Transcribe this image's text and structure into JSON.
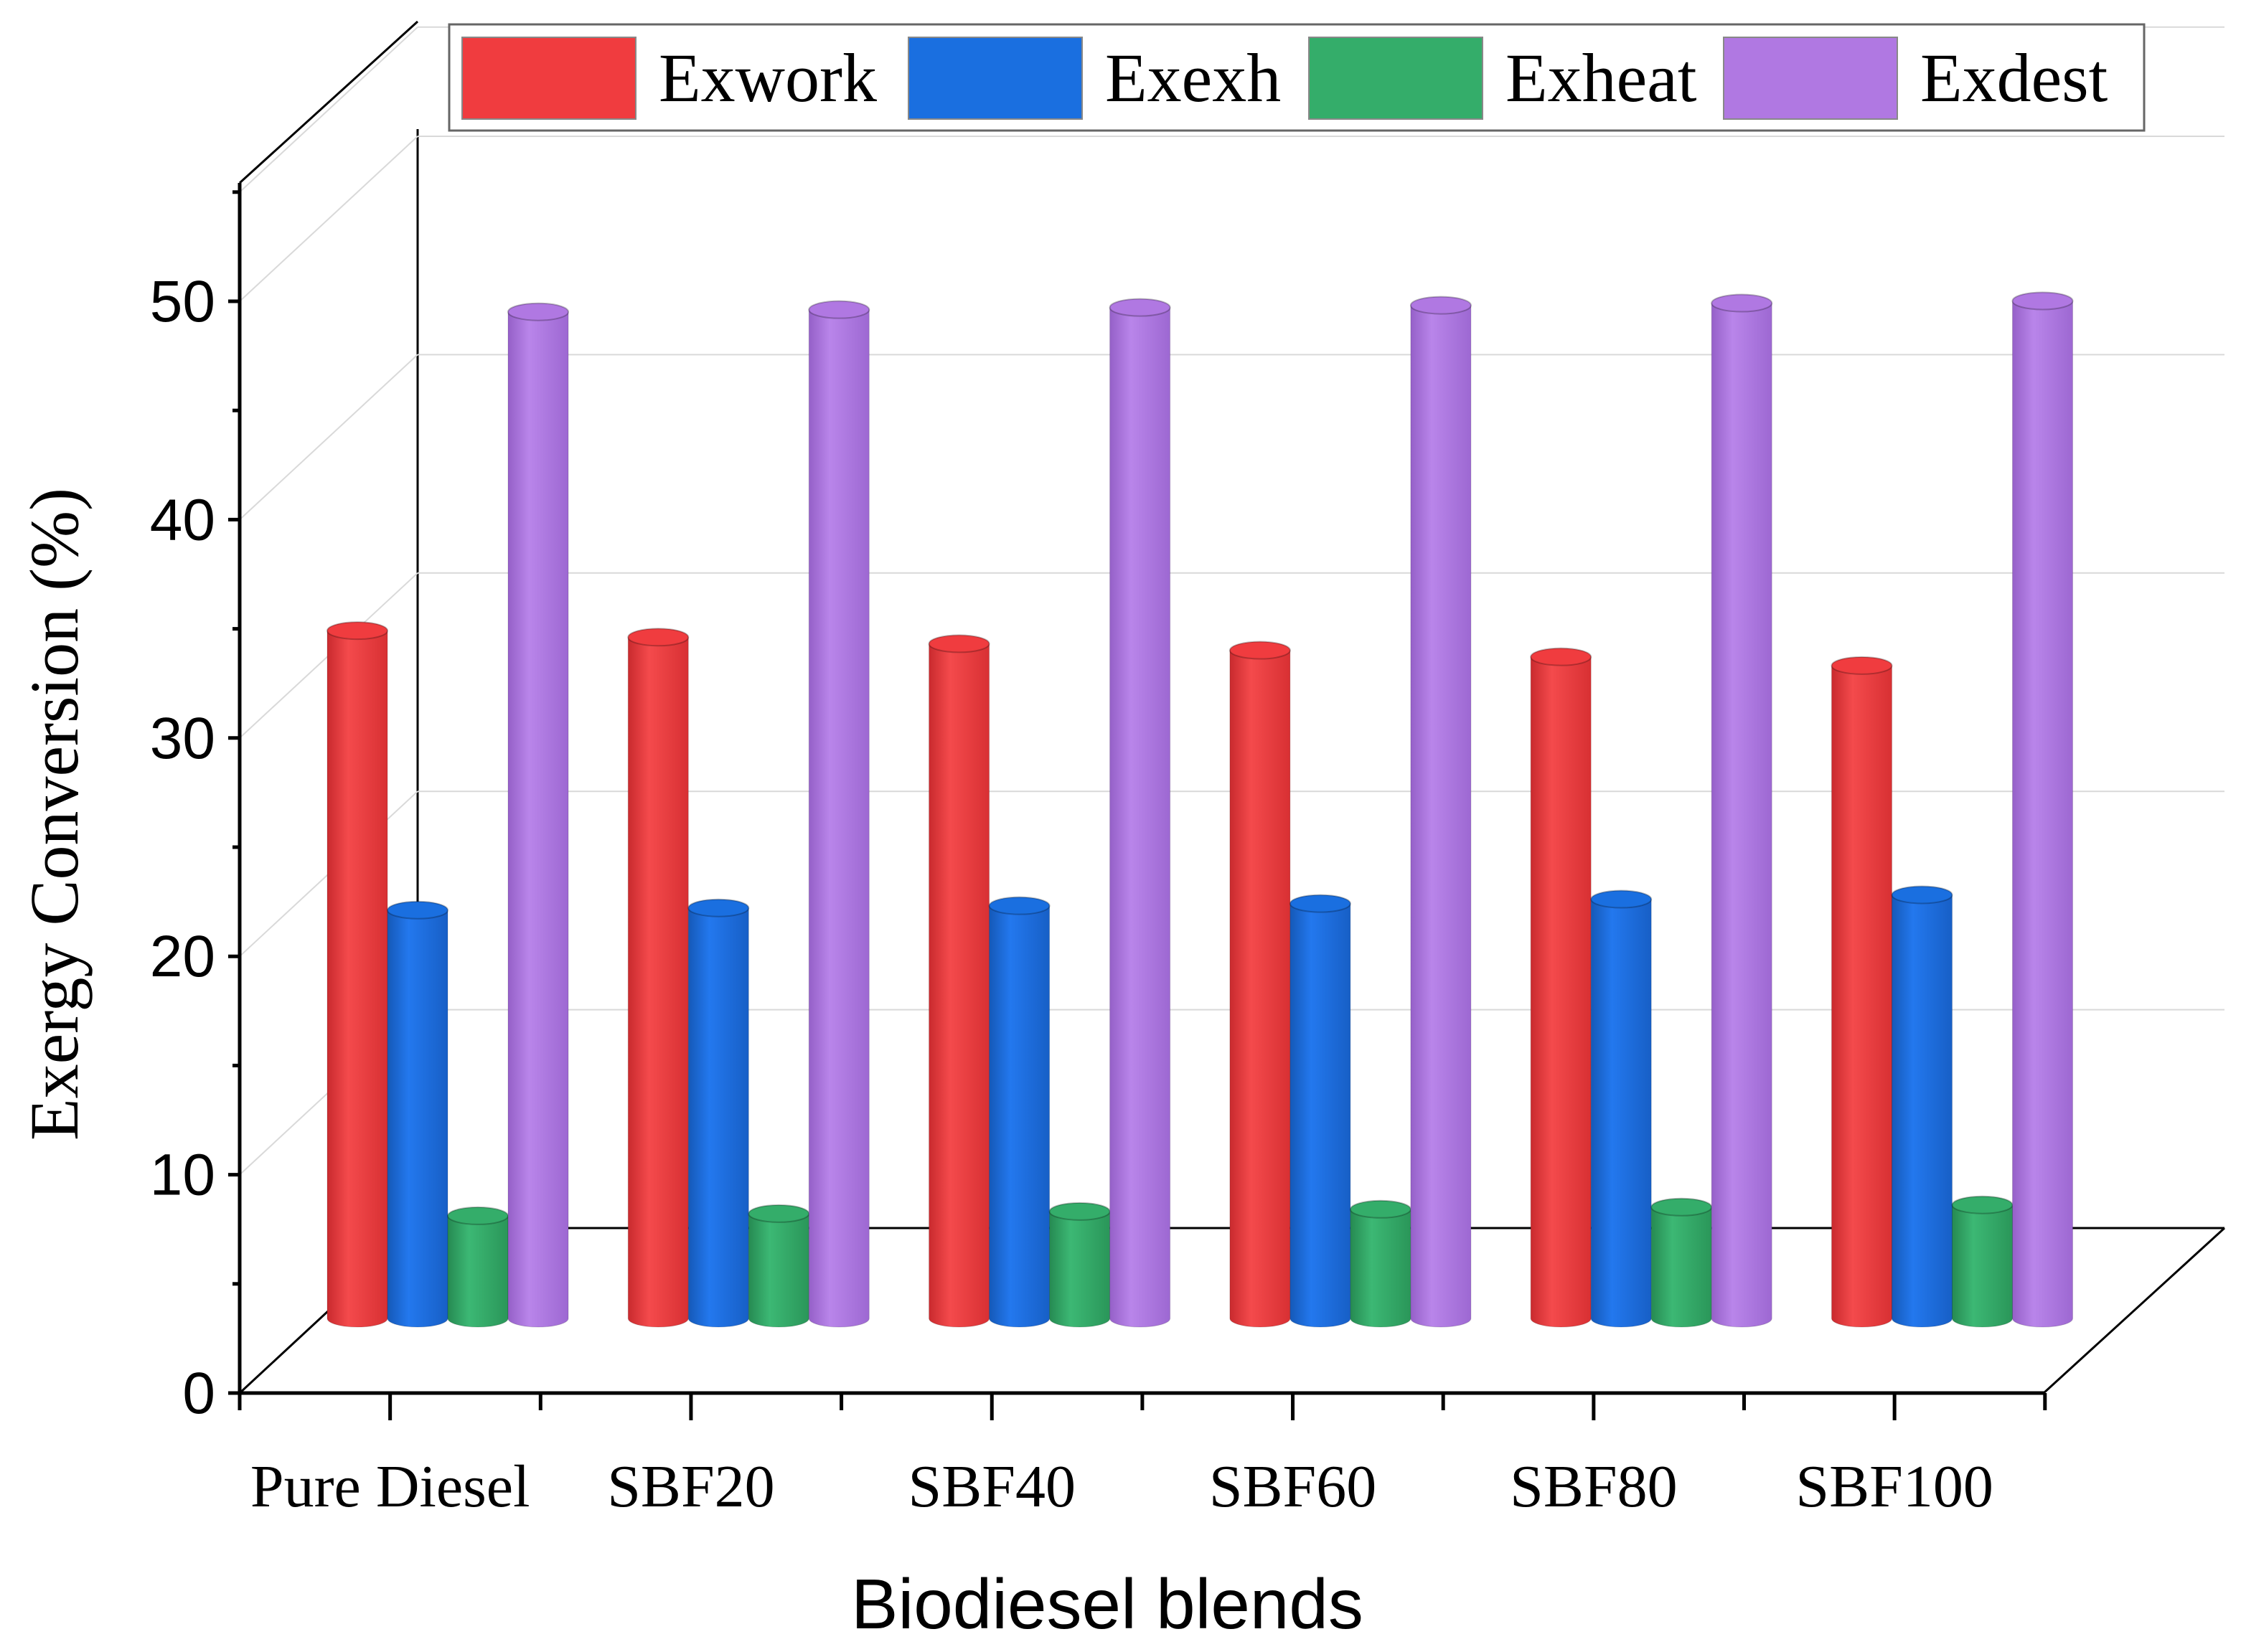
{
  "chart_data": {
    "type": "bar",
    "style": "3d-cylinder",
    "title": "",
    "xlabel": "Biodiesel blends",
    "ylabel": "Exergy Conversion (%)",
    "ylim": [
      0,
      55
    ],
    "yticks": [
      0,
      10,
      20,
      30,
      40,
      50
    ],
    "grid": true,
    "legend_position": "top",
    "categories": [
      "Pure Diesel",
      "SBF20",
      "SBF40",
      "SBF60",
      "SBF80",
      "SBF100"
    ],
    "series": [
      {
        "name": "Exwork",
        "color": "#f03c3f",
        "values": [
          31.5,
          31.2,
          30.9,
          30.6,
          30.3,
          29.9
        ]
      },
      {
        "name": "Exexh",
        "color": "#1a6fe0",
        "values": [
          18.7,
          18.8,
          18.9,
          19.0,
          19.2,
          19.4
        ]
      },
      {
        "name": "Exheat",
        "color": "#34ad6a",
        "values": [
          4.7,
          4.8,
          4.9,
          5.0,
          5.1,
          5.2
        ]
      },
      {
        "name": "Exdest",
        "color": "#b078e2",
        "values": [
          46.1,
          46.2,
          46.3,
          46.4,
          46.5,
          46.6
        ]
      }
    ]
  }
}
